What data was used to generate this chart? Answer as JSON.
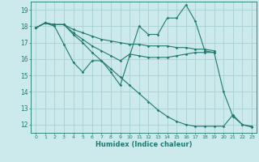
{
  "xlabel": "Humidex (Indice chaleur)",
  "xlim": [
    0,
    23
  ],
  "ylim": [
    11.5,
    19.5
  ],
  "yticks": [
    12,
    13,
    14,
    15,
    16,
    17,
    18,
    19
  ],
  "xticks": [
    0,
    1,
    2,
    3,
    4,
    5,
    6,
    7,
    8,
    9,
    10,
    11,
    12,
    13,
    14,
    15,
    16,
    17,
    18,
    19,
    20,
    21,
    22,
    23
  ],
  "bg_color": "#cce9ec",
  "grid_color": "#aad0d4",
  "line_color": "#1e7b6e",
  "series": [
    [
      17.9,
      18.2,
      18.0,
      16.9,
      15.8,
      15.2,
      15.9,
      15.9,
      15.2,
      14.4,
      16.2,
      18.0,
      17.5,
      17.5,
      18.5,
      18.5,
      19.3,
      18.3,
      16.5,
      16.4,
      null,
      null,
      null,
      null
    ],
    [
      17.9,
      18.2,
      18.1,
      18.1,
      17.8,
      17.6,
      17.4,
      17.2,
      17.1,
      17.0,
      16.9,
      16.9,
      16.8,
      16.8,
      16.8,
      16.7,
      16.7,
      16.6,
      16.6,
      16.5,
      null,
      null,
      null,
      null
    ],
    [
      17.9,
      18.2,
      18.1,
      18.1,
      17.6,
      17.2,
      16.8,
      16.5,
      16.2,
      15.9,
      16.3,
      16.2,
      16.1,
      16.1,
      16.1,
      16.2,
      16.3,
      16.4,
      16.4,
      16.4,
      14.0,
      12.5,
      12.0,
      11.9
    ],
    [
      17.9,
      18.2,
      18.1,
      18.1,
      17.5,
      17.0,
      16.4,
      15.9,
      15.4,
      14.9,
      14.4,
      13.9,
      13.4,
      12.9,
      12.5,
      12.2,
      12.0,
      11.9,
      11.9,
      11.9,
      11.9,
      12.6,
      12.0,
      11.85
    ]
  ]
}
